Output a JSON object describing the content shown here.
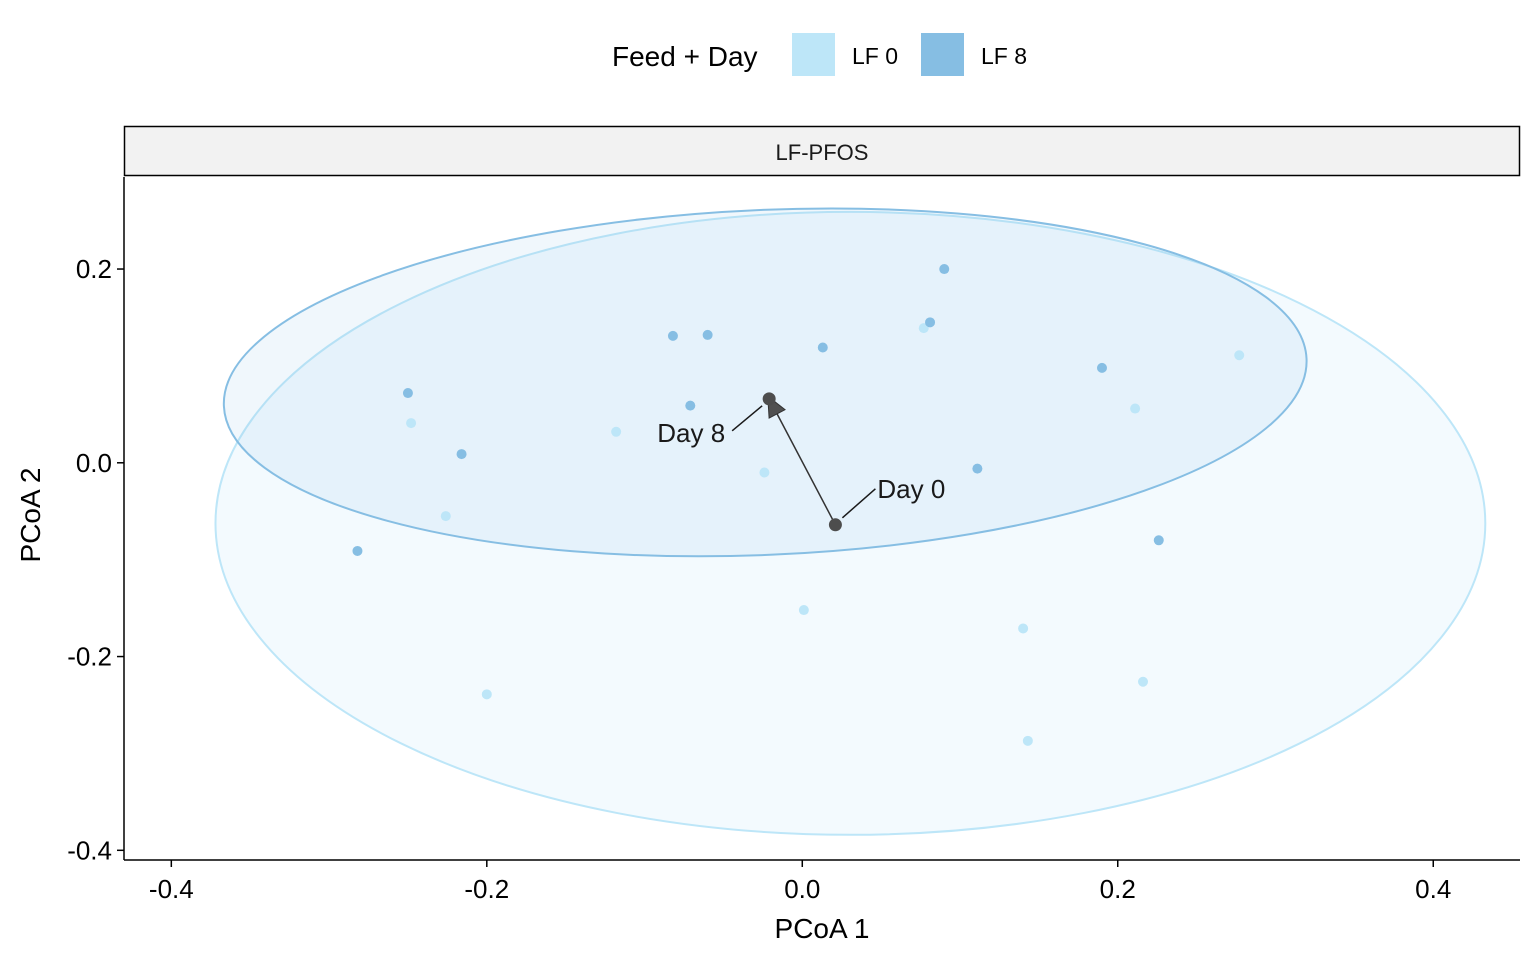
{
  "chart_data": {
    "type": "scatter",
    "facet_title": "LF-PFOS",
    "xlabel": "PCoA 1",
    "ylabel": "PCoA 2",
    "xlim": [
      -0.43,
      0.455
    ],
    "ylim": [
      -0.41,
      0.295
    ],
    "x_ticks": [
      -0.4,
      -0.2,
      0.0,
      0.2,
      0.4
    ],
    "x_tick_labels": [
      "-0.4",
      "-0.2",
      "0.0",
      "0.2",
      "0.4"
    ],
    "y_ticks": [
      -0.4,
      -0.2,
      0.0,
      0.2
    ],
    "y_tick_labels": [
      "-0.4",
      "-0.2",
      "0.0",
      "0.2"
    ],
    "grid": false,
    "legend": {
      "title": "Feed + Day",
      "position": "top",
      "entries": [
        {
          "label": "LF 0",
          "color": "#BDE6F8"
        },
        {
          "label": "LF 8",
          "color": "#86BEE3"
        }
      ]
    },
    "series": [
      {
        "name": "LF 0",
        "color": "#BDE6F8",
        "points": [
          {
            "x": -0.248,
            "y": 0.041
          },
          {
            "x": -0.226,
            "y": -0.055
          },
          {
            "x": -0.2,
            "y": -0.239
          },
          {
            "x": -0.118,
            "y": 0.032
          },
          {
            "x": -0.024,
            "y": -0.01
          },
          {
            "x": 0.001,
            "y": -0.152
          },
          {
            "x": 0.077,
            "y": 0.139
          },
          {
            "x": 0.14,
            "y": -0.171
          },
          {
            "x": 0.143,
            "y": -0.287
          },
          {
            "x": 0.211,
            "y": 0.056
          },
          {
            "x": 0.216,
            "y": -0.226
          },
          {
            "x": 0.277,
            "y": 0.111
          }
        ]
      },
      {
        "name": "LF 8",
        "color": "#86BEE3",
        "points": [
          {
            "x": -0.282,
            "y": -0.091
          },
          {
            "x": -0.25,
            "y": 0.072
          },
          {
            "x": -0.216,
            "y": 0.009
          },
          {
            "x": -0.082,
            "y": 0.131
          },
          {
            "x": -0.071,
            "y": 0.059
          },
          {
            "x": -0.06,
            "y": 0.132
          },
          {
            "x": 0.013,
            "y": 0.119
          },
          {
            "x": 0.081,
            "y": 0.145
          },
          {
            "x": 0.09,
            "y": 0.2
          },
          {
            "x": 0.111,
            "y": -0.006
          },
          {
            "x": 0.19,
            "y": 0.098
          },
          {
            "x": 0.226,
            "y": -0.08
          }
        ]
      }
    ],
    "ellipses": [
      {
        "series": "LF 0",
        "center_x": 0.0305,
        "center_y": -0.0625,
        "radius_x": 0.4025,
        "radius_y": 0.3215,
        "fill": "#BDE6F8",
        "fill_opacity": 0.18,
        "stroke": "#BDE6F8"
      },
      {
        "series": "LF 8",
        "center_x": -0.0235,
        "center_y": 0.083,
        "radius_x": 0.3435,
        "radius_y": 0.178,
        "rotation_deg": -2.5,
        "fill": "#86BEE3",
        "fill_opacity": 0.12,
        "stroke": "#86BEE3"
      }
    ],
    "centroids": [
      {
        "label": "Day 0",
        "x": 0.021,
        "y": -0.064
      },
      {
        "label": "Day 8",
        "x": -0.021,
        "y": 0.066
      }
    ],
    "arrow": {
      "from": "Day 0",
      "to": "Day 8"
    }
  }
}
